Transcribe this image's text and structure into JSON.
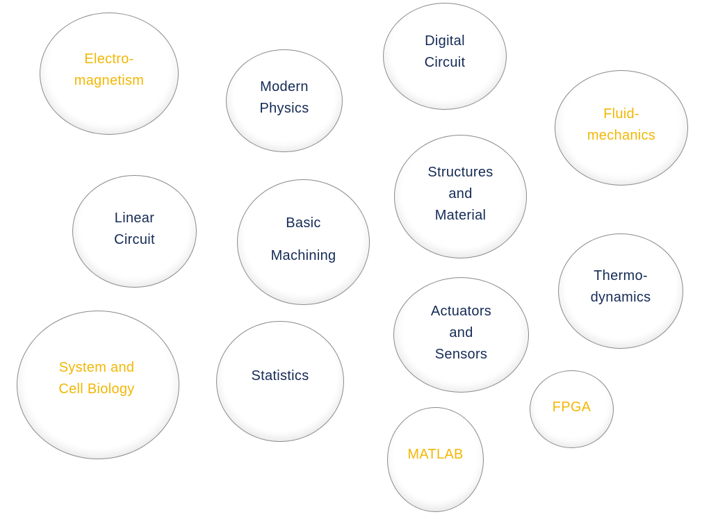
{
  "colors": {
    "navy_text": "#142a55",
    "gold_text": "#f2b705",
    "bubble_border": "#8a8a8a",
    "background": "#ffffff"
  },
  "bubbles": {
    "electromagnetism": {
      "line1": "Electro-",
      "line2": "magnetism",
      "color": "gold"
    },
    "modern_physics": {
      "line1": "Modern",
      "line2": "Physics",
      "color": "navy"
    },
    "digital_circuit": {
      "line1": "Digital",
      "line2": "Circuit",
      "color": "navy"
    },
    "fluid_mechanics": {
      "line1": "Fluid-",
      "line2": "mechanics",
      "color": "gold"
    },
    "structures_material": {
      "line1": "Structures",
      "line2": "and",
      "line3": "Material",
      "color": "navy"
    },
    "linear_circuit": {
      "line1": "Linear",
      "line2": "Circuit",
      "color": "navy"
    },
    "basic_machining": {
      "line1": "Basic",
      "line2": "Machining",
      "color": "navy"
    },
    "thermodynamics": {
      "line1": "Thermo-",
      "line2": "dynamics",
      "color": "navy"
    },
    "actuators_sensors": {
      "line1": "Actuators",
      "line2": "and",
      "line3": "Sensors",
      "color": "navy"
    },
    "system_cell_biology": {
      "line1": "System and",
      "line2": "Cell Biology",
      "color": "gold"
    },
    "statistics": {
      "line1": "Statistics",
      "color": "navy"
    },
    "fpga": {
      "line1": "FPGA",
      "color": "gold"
    },
    "matlab": {
      "line1": "MATLAB",
      "color": "gold"
    }
  }
}
